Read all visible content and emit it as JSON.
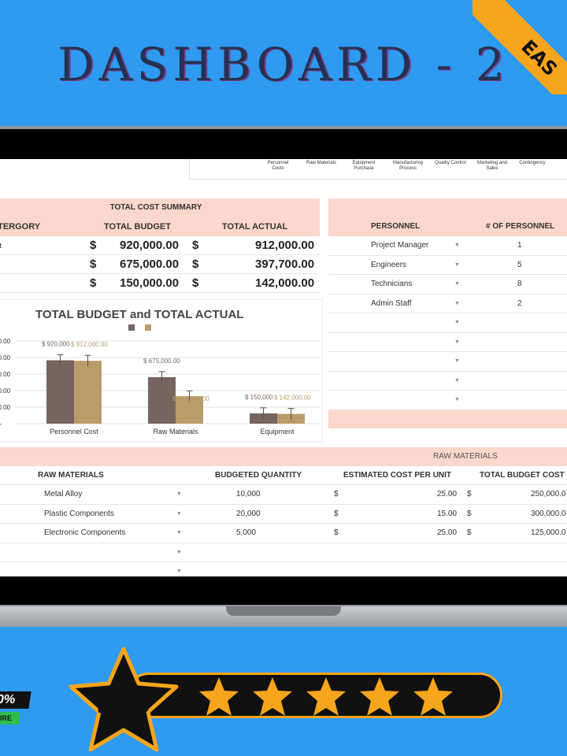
{
  "header": {
    "title": "DASHBOARD - 2",
    "ribbon": "EAS"
  },
  "legend_strip": [
    "Personnel Costs",
    "Raw Materials",
    "Equipment Purchase",
    "Manufacturing Process",
    "Quality Control",
    "Marketing and Sales",
    "Contingency"
  ],
  "cost_summary": {
    "title": "TOTAL COST SUMMARY",
    "columns": [
      "ATERGORY",
      "TOTAL BUDGET",
      "TOTAL ACTUAL"
    ],
    "rows": [
      {
        "category": "ost",
        "budget": "920,000.00",
        "actual": "912,000.00"
      },
      {
        "category": "ls",
        "budget": "675,000.00",
        "actual": "397,700.00"
      },
      {
        "category": "",
        "budget": "150,000.00",
        "actual": "142,000.00"
      }
    ],
    "currency": "$"
  },
  "chart": {
    "title": "TOTAL BUDGET and TOTAL ACTUAL",
    "y_ticks": [
      "00.00",
      "00.00",
      "00.00",
      "00.00",
      "00.00",
      "$ -"
    ],
    "labels": [
      "$ 920,000",
      "$ 912,000.00",
      "$ 675,000.00",
      "$ 397,700.00",
      "$ 150,000",
      "$ 142,000.00"
    ]
  },
  "chart_data": {
    "type": "bar",
    "title": "TOTAL BUDGET and TOTAL ACTUAL",
    "categories": [
      "Personnel Cost",
      "Raw Materials",
      "Equipment"
    ],
    "series": [
      {
        "values": [
          920000,
          675000,
          150000
        ],
        "color": "#76655f"
      },
      {
        "values": [
          912000,
          397700,
          142000
        ],
        "color": "#b89c6a"
      }
    ],
    "ylim": [
      0,
      1200000
    ]
  },
  "personnel": {
    "columns": [
      "PERSONNEL",
      "# OF PERSONNEL"
    ],
    "rows": [
      {
        "role": "Project Manager",
        "count": "1"
      },
      {
        "role": "Engineers",
        "count": "5"
      },
      {
        "role": "Technicians",
        "count": "8"
      },
      {
        "role": "Admin Staff",
        "count": "2"
      },
      {
        "role": "",
        "count": ""
      },
      {
        "role": "",
        "count": ""
      },
      {
        "role": "",
        "count": ""
      },
      {
        "role": "",
        "count": ""
      },
      {
        "role": "",
        "count": ""
      }
    ]
  },
  "raw_materials": {
    "band_title": "RAW MATERIALS",
    "columns": [
      "RAW MATERIALS",
      "BUDGETED QUANTITY",
      "ESTIMATED COST PER UNIT",
      "TOTAL BUDGET COST"
    ],
    "rows": [
      {
        "name": "Metal Alloy",
        "qty": "10,000",
        "unit": "25.00",
        "total": "250,000.0"
      },
      {
        "name": "Plastic Components",
        "qty": "20,000",
        "unit": "15.00",
        "total": "300,000.0"
      },
      {
        "name": "Electronic Components",
        "qty": "5,000",
        "unit": "25.00",
        "total": "125,000.0"
      },
      {
        "name": "",
        "qty": "",
        "unit": "",
        "total": ""
      },
      {
        "name": "",
        "qty": "",
        "unit": "",
        "total": ""
      }
    ]
  },
  "rating": {
    "score": "5.0",
    "stars": 5
  },
  "badge": {
    "top": "0%",
    "bottom": "URE"
  },
  "colors": {
    "background": "#2e9af0",
    "accent": "#f7a51c",
    "header_pink": "#fbd7cd",
    "budget_bar": "#76655f",
    "actual_bar": "#b89c6a"
  }
}
